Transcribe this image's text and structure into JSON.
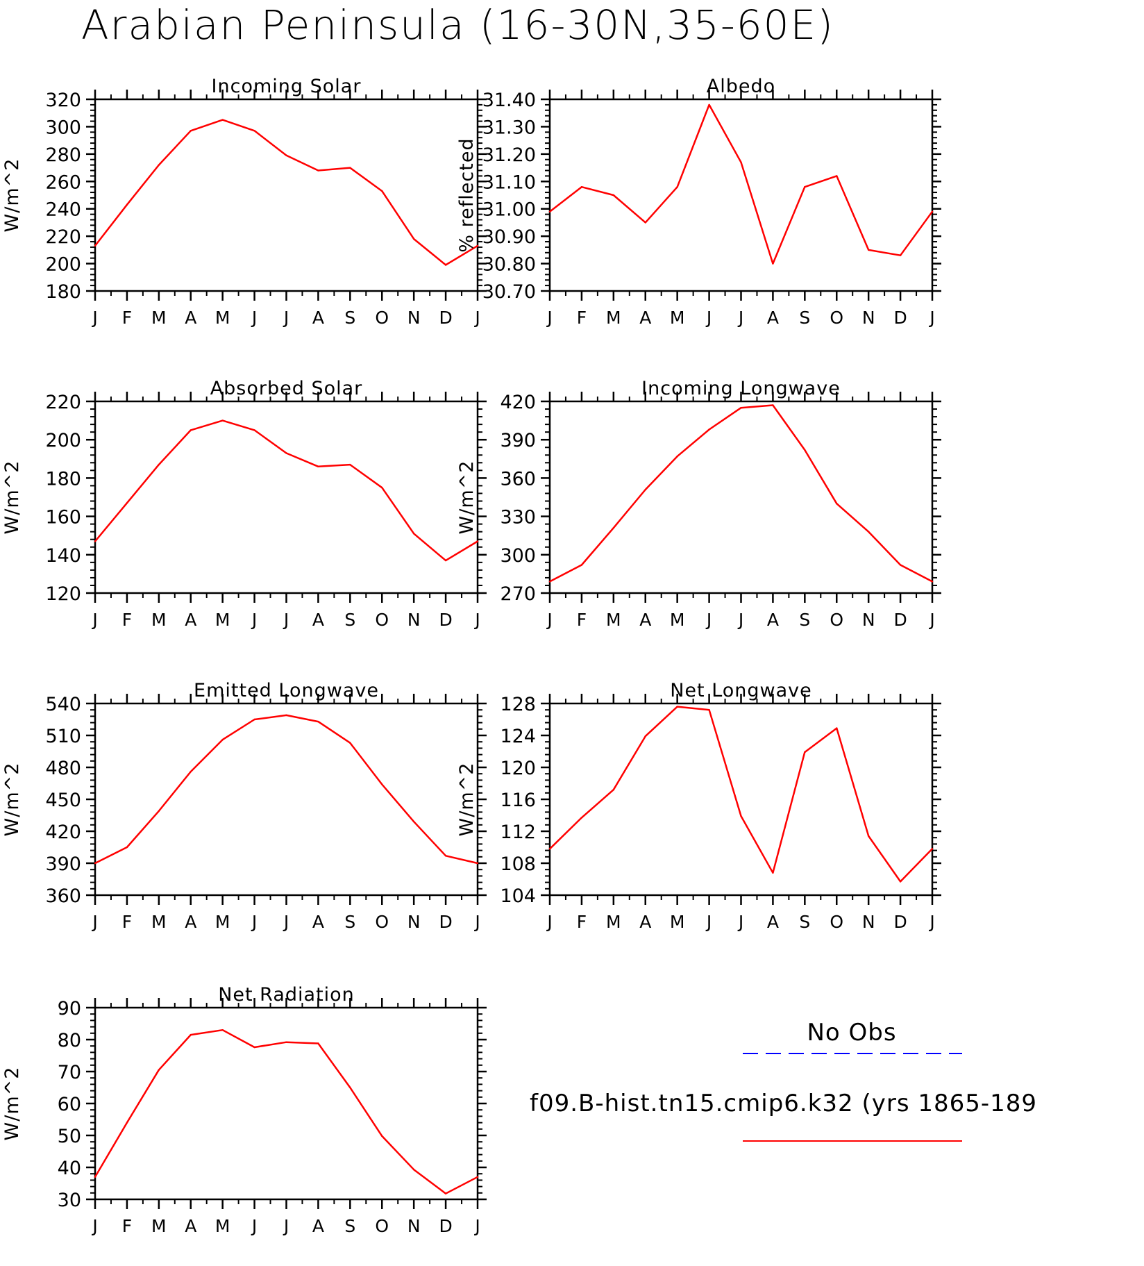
{
  "page_title": "Arabian Peninsula (16-30N,35-60E)",
  "legend": {
    "obs_label": "No Obs",
    "obs_color": "#0000ff",
    "model_label": "f09.B-hist.tn15.cmip6.k32 (yrs 1865-189",
    "model_color": "#ff0000"
  },
  "chart_data": [
    {
      "type": "line",
      "title": "Incoming Solar",
      "ylabel": "W/m^2",
      "categories": [
        "J",
        "F",
        "M",
        "A",
        "M",
        "J",
        "J",
        "A",
        "S",
        "O",
        "N",
        "D",
        "J"
      ],
      "ylim": [
        180,
        320
      ],
      "yticks": [
        180,
        200,
        220,
        240,
        260,
        280,
        300,
        320
      ],
      "ytick_labels": [
        "180",
        "200",
        "220",
        "240",
        "260",
        "280",
        "300",
        "320"
      ],
      "series": [
        {
          "color": "#ff0000",
          "values": [
            213,
            243,
            272,
            297,
            305,
            297,
            279,
            268,
            270,
            253,
            218,
            199,
            213
          ]
        }
      ]
    },
    {
      "type": "line",
      "title": "Albedo",
      "ylabel": "% reflected",
      "categories": [
        "J",
        "F",
        "M",
        "A",
        "M",
        "J",
        "J",
        "A",
        "S",
        "O",
        "N",
        "D",
        "J"
      ],
      "ylim": [
        30.7,
        31.4
      ],
      "yticks": [
        30.7,
        30.8,
        30.9,
        31.0,
        31.1,
        31.2,
        31.3,
        31.4
      ],
      "ytick_labels": [
        "30.70",
        "30.80",
        "30.90",
        "31.00",
        "31.10",
        "31.20",
        "31.30",
        "31.40"
      ],
      "series": [
        {
          "color": "#ff0000",
          "values": [
            30.99,
            31.08,
            31.05,
            30.95,
            31.08,
            31.38,
            31.17,
            30.8,
            31.08,
            31.12,
            30.85,
            30.83,
            30.99
          ]
        }
      ]
    },
    {
      "type": "line",
      "title": "Absorbed Solar",
      "ylabel": "W/m^2",
      "categories": [
        "J",
        "F",
        "M",
        "A",
        "M",
        "J",
        "J",
        "A",
        "S",
        "O",
        "N",
        "D",
        "J"
      ],
      "ylim": [
        120,
        220
      ],
      "yticks": [
        120,
        140,
        160,
        180,
        200,
        220
      ],
      "ytick_labels": [
        "120",
        "140",
        "160",
        "180",
        "200",
        "220"
      ],
      "series": [
        {
          "color": "#ff0000",
          "values": [
            147,
            167,
            187,
            205,
            210,
            205,
            193,
            186,
            187,
            175,
            151,
            137,
            147
          ]
        }
      ]
    },
    {
      "type": "line",
      "title": "Incoming Longwave",
      "ylabel": "W/m^2",
      "categories": [
        "J",
        "F",
        "M",
        "A",
        "M",
        "J",
        "J",
        "A",
        "S",
        "O",
        "N",
        "D",
        "J"
      ],
      "ylim": [
        270,
        420
      ],
      "yticks": [
        270,
        300,
        330,
        360,
        390,
        420
      ],
      "ytick_labels": [
        "270",
        "300",
        "330",
        "360",
        "390",
        "420"
      ],
      "series": [
        {
          "color": "#ff0000",
          "values": [
            279,
            292,
            321,
            351,
            377,
            398,
            415,
            417,
            382,
            340,
            318,
            292,
            279
          ]
        }
      ]
    },
    {
      "type": "line",
      "title": "Emitted Longwave",
      "ylabel": "W/m^2",
      "categories": [
        "J",
        "F",
        "M",
        "A",
        "M",
        "J",
        "J",
        "A",
        "S",
        "O",
        "N",
        "D",
        "J"
      ],
      "ylim": [
        360,
        540
      ],
      "yticks": [
        360,
        390,
        420,
        450,
        480,
        510,
        540
      ],
      "ytick_labels": [
        "360",
        "390",
        "420",
        "450",
        "480",
        "510",
        "540"
      ],
      "series": [
        {
          "color": "#ff0000",
          "values": [
            390,
            405,
            439,
            476,
            506,
            525,
            529,
            523,
            503,
            464,
            429,
            397,
            390
          ]
        }
      ]
    },
    {
      "type": "line",
      "title": "Net Longwave",
      "ylabel": "W/m^2",
      "categories": [
        "J",
        "F",
        "M",
        "A",
        "M",
        "J",
        "J",
        "A",
        "S",
        "O",
        "N",
        "D",
        "J"
      ],
      "ylim": [
        104,
        128
      ],
      "yticks": [
        104,
        108,
        112,
        116,
        120,
        124,
        128
      ],
      "ytick_labels": [
        "104",
        "108",
        "112",
        "116",
        "120",
        "124",
        "128"
      ],
      "series": [
        {
          "color": "#ff0000",
          "values": [
            109.8,
            113.7,
            117.2,
            123.9,
            127.6,
            127.2,
            113.9,
            106.8,
            121.9,
            124.9,
            111.4,
            105.7,
            109.8
          ]
        }
      ]
    },
    {
      "type": "line",
      "title": "Net Radiation",
      "ylabel": "W/m^2",
      "categories": [
        "J",
        "F",
        "M",
        "A",
        "M",
        "J",
        "J",
        "A",
        "S",
        "O",
        "N",
        "D",
        "J"
      ],
      "ylim": [
        30,
        90
      ],
      "yticks": [
        30,
        40,
        50,
        60,
        70,
        80,
        90
      ],
      "ytick_labels": [
        "30",
        "40",
        "50",
        "60",
        "70",
        "80",
        "90"
      ],
      "series": [
        {
          "color": "#ff0000",
          "values": [
            37,
            54,
            70.5,
            81.5,
            83,
            77.6,
            79.2,
            78.8,
            65,
            49.8,
            39.3,
            31.8,
            37
          ]
        }
      ]
    }
  ]
}
